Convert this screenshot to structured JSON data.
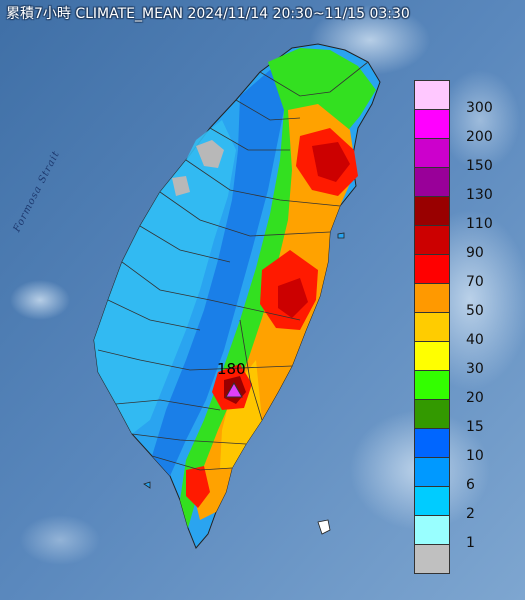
{
  "title": "累積7小時 CLIMATE_MEAN 2024/11/14 20:30~11/15 03:30",
  "sea_label": "Formosa Strait",
  "peak": {
    "value": "180",
    "marker": "triangle-marker-icon",
    "color": "#e040fb"
  },
  "legend": [
    {
      "label": "300",
      "color": "#ffc8ff"
    },
    {
      "label": "200",
      "color": "#ff00ff"
    },
    {
      "label": "150",
      "color": "#cc00cc"
    },
    {
      "label": "130",
      "color": "#990099"
    },
    {
      "label": "110",
      "color": "#990000"
    },
    {
      "label": "90",
      "color": "#cc0000"
    },
    {
      "label": "70",
      "color": "#ff0000"
    },
    {
      "label": "50",
      "color": "#ff9900"
    },
    {
      "label": "40",
      "color": "#ffcc00"
    },
    {
      "label": "30",
      "color": "#ffff00"
    },
    {
      "label": "20",
      "color": "#33ff00"
    },
    {
      "label": "15",
      "color": "#339900"
    },
    {
      "label": "10",
      "color": "#0066ff"
    },
    {
      "label": "6",
      "color": "#0099ff"
    },
    {
      "label": "2",
      "color": "#00ccff"
    },
    {
      "label": "1",
      "color": "#99ffff"
    },
    {
      "label": "",
      "color": "#c0c0c0"
    }
  ]
}
